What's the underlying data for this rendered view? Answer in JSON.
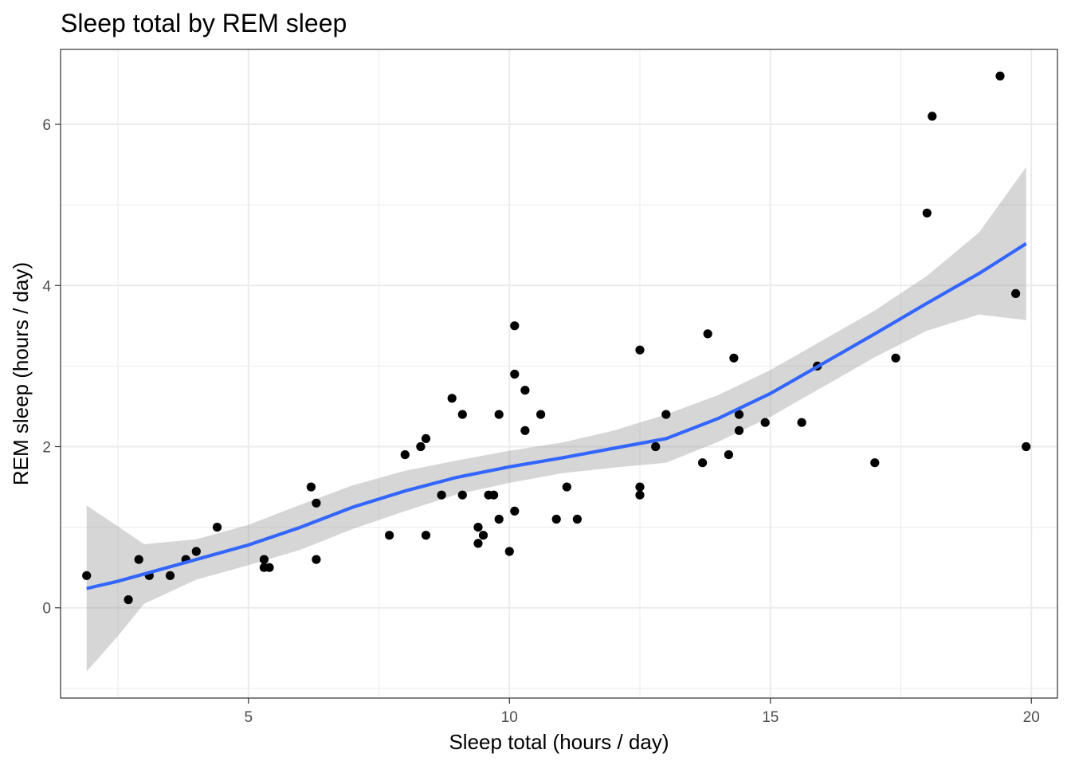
{
  "chart_data": {
    "type": "scatter",
    "title": "Sleep total by REM sleep",
    "xlabel": "Sleep total (hours / day)",
    "ylabel": "REM sleep (hours / day)",
    "xlim": [
      1.4,
      20.5
    ],
    "ylim": [
      -1.12,
      6.93
    ],
    "x_ticks": [
      5,
      10,
      15,
      20
    ],
    "y_ticks": [
      0,
      2,
      4,
      6
    ],
    "x_tick_labels": [
      "5",
      "10",
      "15",
      "20"
    ],
    "y_tick_labels": [
      "0",
      "2",
      "4",
      "6"
    ],
    "x_minor": [
      2.5,
      7.5,
      12.5,
      17.5
    ],
    "y_minor": [
      -1,
      1,
      3,
      5
    ],
    "grid": true,
    "colors": {
      "points": "#000000",
      "smooth_line": "#3366FF",
      "ribbon": "#999999"
    },
    "series": [
      {
        "type": "points",
        "x": [
          1.9,
          2.7,
          2.9,
          3.1,
          3.5,
          3.8,
          4.0,
          4.4,
          5.3,
          5.3,
          5.4,
          6.2,
          6.3,
          6.3,
          7.7,
          8.0,
          8.3,
          8.4,
          8.4,
          8.7,
          8.9,
          9.1,
          9.1,
          9.4,
          9.4,
          9.5,
          9.6,
          9.7,
          9.8,
          9.8,
          10.0,
          10.1,
          10.1,
          10.1,
          10.3,
          10.3,
          10.6,
          10.9,
          11.1,
          11.3,
          12.5,
          12.5,
          12.5,
          12.8,
          13.0,
          13.7,
          13.8,
          14.2,
          14.3,
          14.4,
          14.4,
          14.9,
          15.6,
          15.9,
          17.0,
          17.4,
          18.0,
          18.1,
          19.4,
          19.7,
          19.9
        ],
        "y": [
          0.4,
          0.1,
          0.6,
          0.4,
          0.4,
          0.6,
          0.7,
          1.0,
          0.6,
          0.5,
          0.5,
          1.5,
          1.3,
          0.6,
          0.9,
          1.9,
          2.0,
          2.1,
          0.9,
          1.4,
          2.6,
          2.4,
          1.4,
          1.0,
          0.8,
          0.9,
          1.4,
          1.4,
          2.4,
          1.1,
          0.7,
          3.5,
          2.9,
          1.2,
          2.7,
          2.2,
          2.4,
          1.1,
          1.5,
          1.1,
          3.2,
          1.5,
          1.4,
          2.0,
          2.4,
          1.8,
          3.4,
          1.9,
          3.1,
          2.4,
          2.2,
          2.3,
          2.3,
          3.0,
          1.8,
          3.1,
          4.9,
          6.1,
          6.6,
          3.9,
          2.0
        ]
      },
      {
        "type": "loess",
        "x": [
          1.9,
          2.5,
          3.0,
          4.0,
          5.0,
          6.0,
          7.0,
          8.0,
          9.0,
          10.0,
          11.0,
          12.0,
          13.0,
          14.0,
          15.0,
          16.0,
          17.0,
          18.0,
          19.0,
          19.9
        ],
        "y": [
          0.24,
          0.33,
          0.42,
          0.6,
          0.78,
          1.0,
          1.25,
          1.45,
          1.62,
          1.75,
          1.86,
          1.98,
          2.1,
          2.35,
          2.66,
          3.03,
          3.4,
          3.78,
          4.15,
          4.52
        ],
        "lower": [
          -0.79,
          -0.35,
          0.05,
          0.35,
          0.53,
          0.72,
          0.98,
          1.2,
          1.41,
          1.55,
          1.67,
          1.74,
          1.8,
          2.06,
          2.37,
          2.74,
          3.11,
          3.44,
          3.64,
          3.57
        ],
        "upper": [
          1.27,
          1.01,
          0.79,
          0.85,
          1.03,
          1.28,
          1.52,
          1.7,
          1.83,
          1.95,
          2.05,
          2.2,
          2.4,
          2.64,
          2.95,
          3.32,
          3.69,
          4.12,
          4.66,
          5.47
        ]
      }
    ]
  }
}
